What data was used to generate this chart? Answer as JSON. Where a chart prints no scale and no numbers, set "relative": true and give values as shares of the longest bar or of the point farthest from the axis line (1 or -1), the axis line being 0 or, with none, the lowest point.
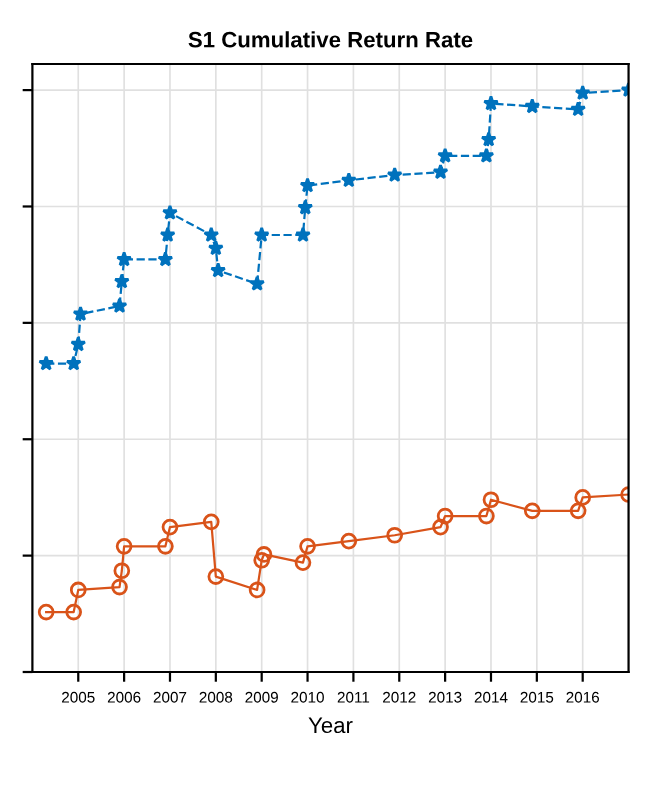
{
  "chart_data": {
    "type": "line",
    "title": "S1 Cumulative Return Rate",
    "xlabel": "Year",
    "relative": true,
    "grid": true,
    "xlim": [
      2004,
      2017
    ],
    "xticks": [
      2005,
      2006,
      2007,
      2008,
      2009,
      2010,
      2011,
      2012,
      2013,
      2014,
      2015,
      2016
    ],
    "series": [
      {
        "color": "#0072bd",
        "marker": "star",
        "line_style": "dashed",
        "x": [
          2004.3,
          2004.9,
          2005.0,
          2005.05,
          2005.9,
          2005.95,
          2006.0,
          2006.9,
          2006.95,
          2007.0,
          2007.9,
          2008.0,
          2008.05,
          2008.9,
          2009.0,
          2009.9,
          2009.95,
          2010.0,
          2010.9,
          2011.9,
          2012.9,
          2013.0,
          2013.9,
          2013.95,
          2014.0,
          2014.9,
          2015.9,
          2016.0,
          2017.0
        ],
        "values": [
          0.53,
          0.53,
          0.563,
          0.615,
          0.629,
          0.671,
          0.709,
          0.709,
          0.751,
          0.789,
          0.751,
          0.728,
          0.69,
          0.667,
          0.751,
          0.751,
          0.798,
          0.836,
          0.845,
          0.854,
          0.859,
          0.887,
          0.887,
          0.915,
          0.977,
          0.972,
          0.967,
          0.995,
          1.0
        ]
      },
      {
        "color": "#d95319",
        "marker": "circle",
        "line_style": "solid",
        "x": [
          2004.3,
          2004.9,
          2005.0,
          2005.9,
          2005.95,
          2006.0,
          2006.9,
          2007.0,
          2007.9,
          2008.0,
          2008.9,
          2009.0,
          2009.05,
          2009.9,
          2010.0,
          2010.9,
          2011.9,
          2012.9,
          2013.0,
          2013.9,
          2014.0,
          2014.9,
          2015.9,
          2016.0,
          2017.0
        ],
        "values": [
          0.103,
          0.103,
          0.141,
          0.146,
          0.174,
          0.216,
          0.216,
          0.249,
          0.258,
          0.164,
          0.141,
          0.192,
          0.202,
          0.188,
          0.216,
          0.225,
          0.235,
          0.249,
          0.268,
          0.268,
          0.296,
          0.277,
          0.277,
          0.3,
          0.305
        ]
      }
    ]
  }
}
